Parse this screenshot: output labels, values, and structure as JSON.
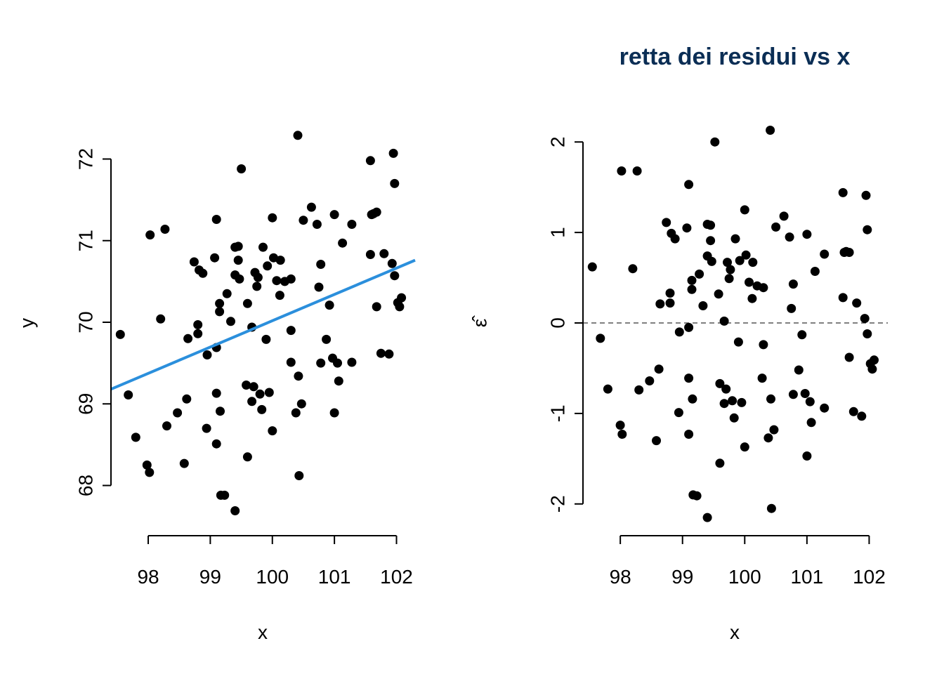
{
  "chart_data": [
    {
      "type": "scatter",
      "title": "",
      "xlabel": "x",
      "ylabel": "y",
      "xlim": [
        97.4,
        102.3
      ],
      "ylim": [
        67.6,
        72.4
      ],
      "xticks": [
        98,
        99,
        100,
        101,
        102
      ],
      "yticks": [
        68,
        69,
        70,
        71,
        72
      ],
      "x_tick_labels": [
        "98",
        "99",
        "100",
        "101",
        "102"
      ],
      "y_tick_labels": [
        "68",
        "69",
        "70",
        "71",
        "72"
      ],
      "regression_line": {
        "x": [
          97.4,
          102.3
        ],
        "y": [
          69.18,
          70.76
        ],
        "color": "#2b8fdc"
      },
      "points": [
        [
          97.55,
          69.85
        ],
        [
          97.68,
          69.11
        ],
        [
          97.8,
          68.59
        ],
        [
          97.98,
          68.25
        ],
        [
          98.02,
          68.16
        ],
        [
          98.03,
          71.07
        ],
        [
          98.2,
          70.04
        ],
        [
          98.27,
          71.14
        ],
        [
          98.3,
          68.73
        ],
        [
          98.47,
          68.89
        ],
        [
          98.58,
          68.27
        ],
        [
          98.62,
          69.06
        ],
        [
          98.64,
          69.8
        ],
        [
          98.74,
          70.74
        ],
        [
          98.8,
          69.97
        ],
        [
          98.8,
          69.86
        ],
        [
          98.82,
          70.64
        ],
        [
          98.88,
          70.6
        ],
        [
          98.94,
          68.7
        ],
        [
          98.95,
          69.6
        ],
        [
          99.07,
          70.79
        ],
        [
          99.1,
          71.26
        ],
        [
          99.1,
          69.13
        ],
        [
          99.1,
          68.51
        ],
        [
          99.1,
          69.69
        ],
        [
          99.15,
          70.13
        ],
        [
          99.15,
          70.23
        ],
        [
          99.16,
          68.91
        ],
        [
          99.17,
          67.88
        ],
        [
          99.23,
          67.88
        ],
        [
          99.27,
          70.35
        ],
        [
          99.33,
          70.01
        ],
        [
          99.4,
          67.69
        ],
        [
          99.4,
          70.92
        ],
        [
          99.4,
          70.58
        ],
        [
          99.45,
          70.93
        ],
        [
          99.45,
          70.76
        ],
        [
          99.47,
          70.53
        ],
        [
          99.5,
          71.88
        ],
        [
          99.58,
          69.23
        ],
        [
          99.6,
          70.23
        ],
        [
          99.6,
          68.35
        ],
        [
          99.67,
          69.94
        ],
        [
          99.67,
          69.03
        ],
        [
          99.7,
          69.21
        ],
        [
          99.72,
          70.61
        ],
        [
          99.75,
          70.44
        ],
        [
          99.77,
          70.55
        ],
        [
          99.8,
          69.12
        ],
        [
          99.83,
          68.93
        ],
        [
          99.85,
          70.92
        ],
        [
          99.9,
          69.79
        ],
        [
          99.92,
          70.69
        ],
        [
          99.95,
          69.14
        ],
        [
          100.0,
          71.28
        ],
        [
          100.0,
          68.67
        ],
        [
          100.02,
          70.79
        ],
        [
          100.07,
          70.51
        ],
        [
          100.12,
          70.33
        ],
        [
          100.13,
          70.76
        ],
        [
          100.2,
          70.5
        ],
        [
          100.3,
          69.51
        ],
        [
          100.3,
          70.53
        ],
        [
          100.3,
          69.9
        ],
        [
          100.38,
          68.89
        ],
        [
          100.41,
          72.29
        ],
        [
          100.42,
          69.34
        ],
        [
          100.43,
          68.12
        ],
        [
          100.47,
          69.0
        ],
        [
          100.5,
          71.25
        ],
        [
          100.63,
          71.41
        ],
        [
          100.72,
          71.2
        ],
        [
          100.75,
          70.43
        ],
        [
          100.78,
          69.5
        ],
        [
          100.78,
          70.71
        ],
        [
          100.87,
          69.79
        ],
        [
          100.92,
          70.21
        ],
        [
          100.97,
          69.56
        ],
        [
          101.0,
          71.32
        ],
        [
          101.0,
          68.89
        ],
        [
          101.05,
          69.5
        ],
        [
          101.07,
          69.28
        ],
        [
          101.13,
          70.97
        ],
        [
          101.28,
          71.2
        ],
        [
          101.28,
          69.51
        ],
        [
          101.58,
          71.98
        ],
        [
          101.58,
          70.83
        ],
        [
          101.6,
          71.32
        ],
        [
          101.68,
          71.35
        ],
        [
          101.68,
          70.19
        ],
        [
          101.75,
          69.62
        ],
        [
          101.8,
          70.84
        ],
        [
          101.88,
          69.61
        ],
        [
          101.93,
          70.72
        ],
        [
          101.95,
          72.07
        ],
        [
          101.97,
          71.7
        ],
        [
          101.97,
          70.57
        ],
        [
          102.02,
          70.24
        ],
        [
          102.05,
          70.19
        ],
        [
          102.08,
          70.3
        ],
        [
          101.63,
          71.33
        ]
      ]
    },
    {
      "type": "scatter",
      "title": "retta dei residui vs x",
      "title_color": "#0b2e55",
      "xlabel": "x",
      "ylabel": "ε̂",
      "xlim": [
        97.4,
        102.3
      ],
      "ylim": [
        -2.25,
        2.25
      ],
      "xticks": [
        98,
        99,
        100,
        101,
        102
      ],
      "yticks": [
        -2,
        -1,
        0,
        1,
        2
      ],
      "x_tick_labels": [
        "98",
        "99",
        "100",
        "101",
        "102"
      ],
      "y_tick_labels": [
        "-2",
        "-1",
        "0",
        "1",
        "2"
      ],
      "reference_line": {
        "y": 0,
        "style": "dashed"
      },
      "points": [
        [
          97.55,
          0.62
        ],
        [
          97.68,
          -0.17
        ],
        [
          97.8,
          -0.73
        ],
        [
          98.0,
          -1.13
        ],
        [
          98.02,
          1.68
        ],
        [
          98.03,
          -1.23
        ],
        [
          98.2,
          0.6
        ],
        [
          98.27,
          1.68
        ],
        [
          98.3,
          -0.74
        ],
        [
          98.47,
          -0.64
        ],
        [
          98.58,
          -1.3
        ],
        [
          98.62,
          -0.51
        ],
        [
          98.64,
          0.21
        ],
        [
          98.74,
          1.11
        ],
        [
          98.8,
          0.33
        ],
        [
          98.8,
          0.22
        ],
        [
          98.82,
          0.99
        ],
        [
          98.88,
          0.93
        ],
        [
          98.94,
          -0.99
        ],
        [
          98.95,
          -0.1
        ],
        [
          99.07,
          1.05
        ],
        [
          99.1,
          1.53
        ],
        [
          99.1,
          -0.61
        ],
        [
          99.1,
          -1.23
        ],
        [
          99.1,
          -0.05
        ],
        [
          99.15,
          0.37
        ],
        [
          99.15,
          0.47
        ],
        [
          99.16,
          -0.84
        ],
        [
          99.17,
          -1.9
        ],
        [
          99.23,
          -1.91
        ],
        [
          99.27,
          0.54
        ],
        [
          99.33,
          0.19
        ],
        [
          99.4,
          -2.15
        ],
        [
          99.4,
          1.09
        ],
        [
          99.4,
          0.74
        ],
        [
          99.45,
          1.08
        ],
        [
          99.45,
          0.91
        ],
        [
          99.47,
          0.68
        ],
        [
          99.52,
          2.0
        ],
        [
          99.58,
          0.32
        ],
        [
          99.6,
          -0.67
        ],
        [
          99.6,
          -1.55
        ],
        [
          99.67,
          0.02
        ],
        [
          99.67,
          -0.89
        ],
        [
          99.7,
          -0.73
        ],
        [
          99.72,
          0.67
        ],
        [
          99.75,
          0.49
        ],
        [
          99.77,
          0.59
        ],
        [
          99.8,
          -0.86
        ],
        [
          99.83,
          -1.05
        ],
        [
          99.85,
          0.93
        ],
        [
          99.9,
          -0.21
        ],
        [
          99.92,
          0.69
        ],
        [
          99.95,
          -0.88
        ],
        [
          100.0,
          1.25
        ],
        [
          100.0,
          -1.37
        ],
        [
          100.02,
          0.75
        ],
        [
          100.07,
          0.45
        ],
        [
          100.12,
          0.27
        ],
        [
          100.13,
          0.67
        ],
        [
          100.2,
          0.41
        ],
        [
          100.28,
          -0.61
        ],
        [
          100.3,
          0.39
        ],
        [
          100.3,
          -0.24
        ],
        [
          100.38,
          -1.27
        ],
        [
          100.41,
          2.13
        ],
        [
          100.42,
          -0.84
        ],
        [
          100.43,
          -2.05
        ],
        [
          100.47,
          -1.18
        ],
        [
          100.5,
          1.06
        ],
        [
          100.63,
          1.18
        ],
        [
          100.72,
          0.95
        ],
        [
          100.75,
          0.16
        ],
        [
          100.78,
          -0.79
        ],
        [
          100.78,
          0.43
        ],
        [
          100.87,
          -0.52
        ],
        [
          100.92,
          -0.13
        ],
        [
          100.97,
          -0.78
        ],
        [
          101.0,
          0.98
        ],
        [
          101.0,
          -1.47
        ],
        [
          101.05,
          -0.87
        ],
        [
          101.07,
          -1.1
        ],
        [
          101.13,
          0.57
        ],
        [
          101.28,
          0.76
        ],
        [
          101.28,
          -0.94
        ],
        [
          101.58,
          1.44
        ],
        [
          101.58,
          0.28
        ],
        [
          101.6,
          0.78
        ],
        [
          101.68,
          0.78
        ],
        [
          101.68,
          -0.38
        ],
        [
          101.75,
          -0.98
        ],
        [
          101.8,
          0.22
        ],
        [
          101.88,
          -1.03
        ],
        [
          101.93,
          0.05
        ],
        [
          101.95,
          1.41
        ],
        [
          101.97,
          1.03
        ],
        [
          101.97,
          -0.12
        ],
        [
          102.02,
          -0.45
        ],
        [
          102.05,
          -0.51
        ],
        [
          102.08,
          -0.41
        ],
        [
          101.63,
          0.79
        ]
      ]
    }
  ]
}
